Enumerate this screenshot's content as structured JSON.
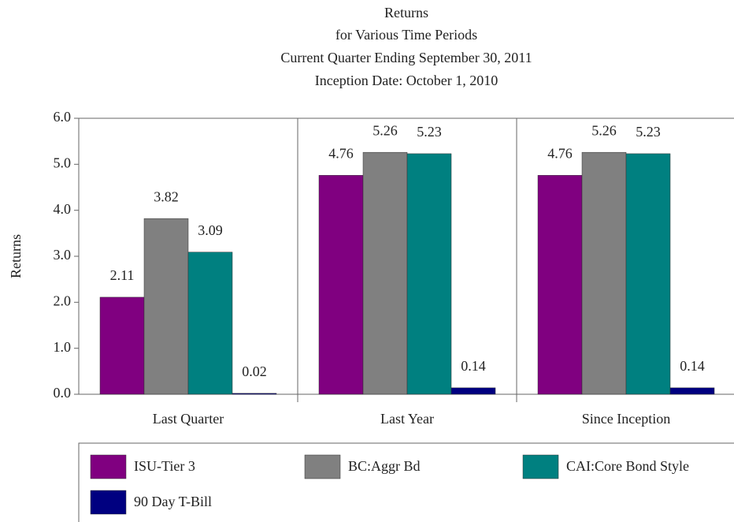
{
  "chart_data": {
    "type": "bar",
    "title": "Returns",
    "subtitle": [
      "for Various Time Periods",
      "Current Quarter Ending September 30, 2011",
      "Inception Date: October 1, 2010"
    ],
    "ylabel": "Returns",
    "categories": [
      "Last Quarter",
      "Last Year",
      "Since Inception"
    ],
    "series": [
      {
        "name": "ISU-Tier 3",
        "color": "#800080",
        "values": [
          2.11,
          4.76,
          4.76
        ]
      },
      {
        "name": "BC:Aggr Bd",
        "color": "#808080",
        "values": [
          3.82,
          5.26,
          5.26
        ]
      },
      {
        "name": "CAI:Core Bond Style",
        "color": "#008080",
        "values": [
          3.09,
          5.23,
          5.23
        ]
      },
      {
        "name": "90 Day T-Bill",
        "color": "#000080",
        "values": [
          0.02,
          0.14,
          0.14
        ]
      }
    ],
    "ylim": [
      0,
      6
    ],
    "yticks": [
      {
        "value": 0,
        "label": "0.0"
      },
      {
        "value": 1,
        "label": "1.0"
      },
      {
        "value": 2,
        "label": "2.0"
      },
      {
        "value": 3,
        "label": "3.0"
      },
      {
        "value": 4,
        "label": "4.0"
      },
      {
        "value": 5,
        "label": "5.0"
      },
      {
        "value": 6,
        "label": "6.0"
      }
    ],
    "legend": "bottom"
  }
}
